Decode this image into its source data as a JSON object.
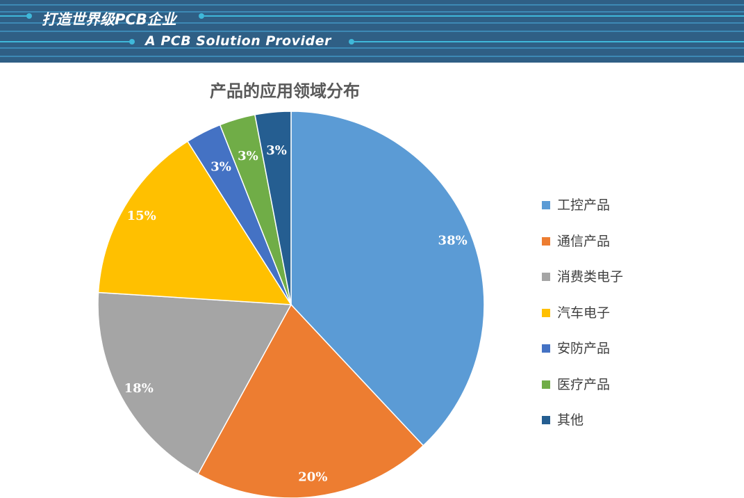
{
  "banner": {
    "title_cn": "打造世界级PCB企业",
    "title_en": "A PCB Solution Provider"
  },
  "chart_data": {
    "type": "pie",
    "title": "产品的应用领域分布",
    "categories": [
      "工控产品",
      "通信产品",
      "消费类电子",
      "汽车电子",
      "安防产品",
      "医疗产品",
      "其他"
    ],
    "values": [
      38,
      20,
      18,
      15,
      3,
      3,
      3
    ],
    "labels": [
      "38%",
      "20%",
      "18%",
      "15%",
      "3%",
      "3%",
      "3%"
    ],
    "colors": [
      "#5b9bd5",
      "#ed7d31",
      "#a5a5a5",
      "#ffc000",
      "#4472c4",
      "#70ad47",
      "#255e91"
    ],
    "start_angle": "12 o'clock",
    "direction": "clockwise",
    "legend_position": "right"
  }
}
